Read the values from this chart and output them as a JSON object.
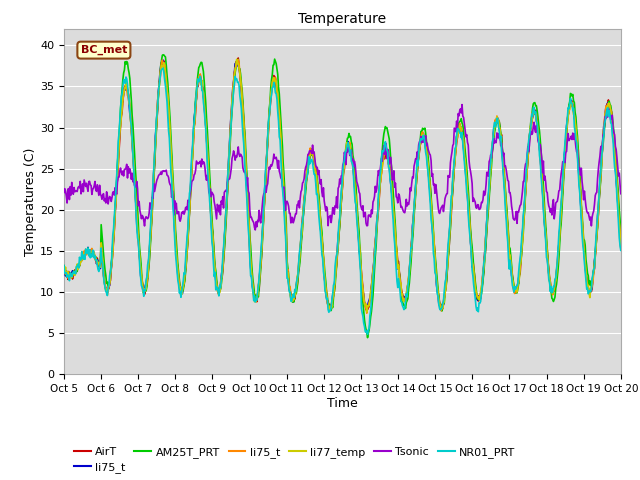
{
  "title": "Temperature",
  "xlabel": "Time",
  "ylabel": "Temperatures (C)",
  "ylim": [
    0,
    42
  ],
  "yticks": [
    0,
    5,
    10,
    15,
    20,
    25,
    30,
    35,
    40
  ],
  "background_color": "#dcdcdc",
  "annotation_text": "BC_met",
  "annotation_facecolor": "#ffffcc",
  "annotation_edgecolor": "#8B4513",
  "annotation_textcolor": "#8B0000",
  "series": {
    "AirT": {
      "color": "#cc0000",
      "lw": 1.2
    },
    "li75_t_b": {
      "color": "#0000cc",
      "lw": 1.2
    },
    "AM25T_PRT": {
      "color": "#00cc00",
      "lw": 1.2
    },
    "li75_t": {
      "color": "#ff8800",
      "lw": 1.2
    },
    "li77_temp": {
      "color": "#cccc00",
      "lw": 1.2
    },
    "Tsonic": {
      "color": "#9900cc",
      "lw": 1.2
    },
    "NR01_PRT": {
      "color": "#00cccc",
      "lw": 1.2
    }
  },
  "n_days": 15,
  "start_day": 5,
  "peaks_main": [
    15,
    35,
    38,
    36,
    38,
    36,
    27,
    28,
    27,
    29,
    30,
    31,
    32,
    33,
    33
  ],
  "troughs_main": [
    12,
    10,
    10,
    10,
    10,
    9,
    9,
    8,
    8,
    9,
    8,
    9,
    10,
    10,
    10
  ],
  "peaks_green": [
    15,
    38,
    39,
    38,
    38,
    38,
    27,
    29,
    30,
    30,
    31,
    31,
    33,
    34,
    33
  ],
  "troughs_green": [
    12,
    11,
    10,
    10,
    10,
    9,
    9,
    8,
    5,
    8,
    8,
    9,
    10,
    9,
    11
  ],
  "peaks_tsonic": [
    23,
    25,
    25,
    26,
    27,
    26,
    27,
    27,
    27,
    29,
    32,
    29,
    30,
    29,
    32
  ],
  "troughs_tsonic": [
    22,
    21,
    19,
    19,
    20,
    18,
    19,
    19,
    19,
    20,
    20,
    20,
    19,
    20,
    19
  ],
  "peaks_nr01": [
    15,
    36,
    37,
    36,
    36,
    35,
    26,
    28,
    28,
    29,
    30,
    31,
    32,
    33,
    32
  ],
  "troughs_nr01": [
    12,
    10,
    10,
    10,
    10,
    9,
    9,
    8,
    5,
    8,
    8,
    8,
    10,
    10,
    10
  ]
}
